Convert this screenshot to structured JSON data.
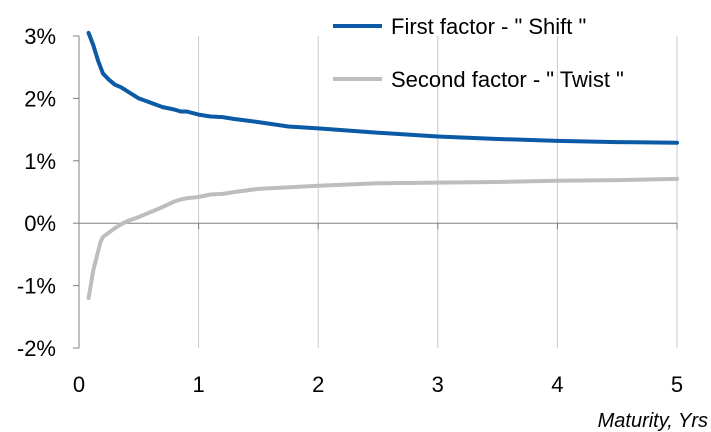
{
  "chart_data": {
    "type": "line",
    "title": "",
    "xlabel": "Maturity, Yrs",
    "ylabel": "",
    "xlim": [
      0,
      5
    ],
    "ylim": [
      -2,
      3
    ],
    "x_ticks": [
      0,
      1,
      2,
      3,
      4,
      5
    ],
    "x_tick_labels": [
      "0",
      "1",
      "2",
      "3",
      "4",
      "5"
    ],
    "y_ticks": [
      3,
      2,
      1,
      0,
      -1,
      -2
    ],
    "y_tick_labels": [
      "3%",
      "2%",
      "1%",
      "0%",
      "-1%",
      "-2%"
    ],
    "grid": "vertical",
    "legend_position": "top-right",
    "series": [
      {
        "name": "First factor - \" Shift \"",
        "color": "#0a5aa5",
        "x": [
          0.08,
          0.12,
          0.16,
          0.18,
          0.2,
          0.25,
          0.3,
          0.35,
          0.4,
          0.5,
          0.6,
          0.7,
          0.8,
          0.85,
          0.9,
          1.0,
          1.1,
          1.2,
          1.3,
          1.5,
          1.75,
          2.0,
          2.5,
          3.0,
          3.5,
          4.0,
          4.5,
          5.0
        ],
        "values": [
          3.05,
          2.85,
          2.6,
          2.5,
          2.4,
          2.3,
          2.22,
          2.18,
          2.12,
          2.0,
          1.93,
          1.86,
          1.82,
          1.79,
          1.79,
          1.74,
          1.71,
          1.7,
          1.67,
          1.62,
          1.55,
          1.52,
          1.45,
          1.39,
          1.35,
          1.32,
          1.3,
          1.29
        ]
      },
      {
        "name": "Second factor - \" Twist \"",
        "color": "#bdbdbd",
        "x": [
          0.08,
          0.12,
          0.16,
          0.18,
          0.2,
          0.25,
          0.3,
          0.35,
          0.4,
          0.5,
          0.6,
          0.7,
          0.8,
          0.85,
          0.9,
          1.0,
          1.1,
          1.2,
          1.3,
          1.5,
          2.0,
          2.5,
          3.0,
          3.5,
          4.0,
          4.5,
          5.0
        ],
        "values": [
          -1.2,
          -0.75,
          -0.45,
          -0.3,
          -0.22,
          -0.15,
          -0.08,
          -0.02,
          0.03,
          0.1,
          0.18,
          0.26,
          0.35,
          0.38,
          0.4,
          0.42,
          0.46,
          0.47,
          0.5,
          0.55,
          0.6,
          0.64,
          0.65,
          0.66,
          0.68,
          0.69,
          0.71
        ]
      }
    ]
  }
}
